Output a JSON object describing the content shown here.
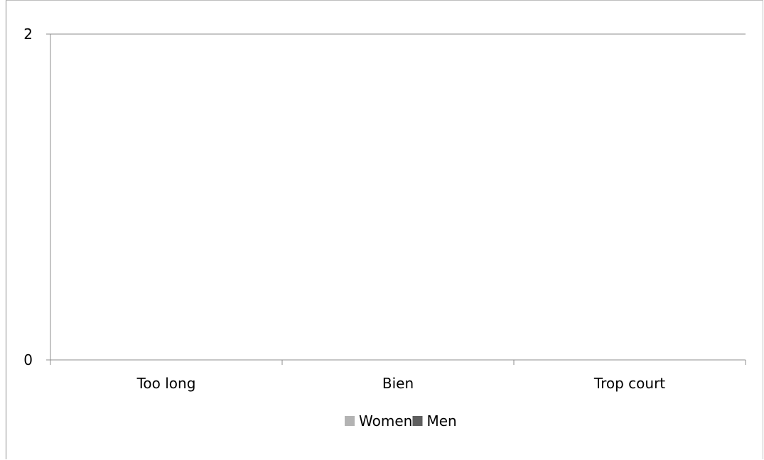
{
  "chart_data": {
    "type": "bar",
    "categories": [
      "Too long",
      "Bien",
      "Trop court"
    ],
    "series": [
      {
        "name": "Women",
        "values": [
          0,
          0,
          0
        ]
      },
      {
        "name": "Men",
        "values": [
          0,
          0,
          0
        ]
      }
    ],
    "ylim": [
      0,
      2
    ],
    "yticks": [
      0,
      2
    ],
    "grid": true,
    "legend_position": "bottom",
    "colors": {
      "Women": "#b3b3b3",
      "Men": "#5f5f5f",
      "gridline": "#8c8c8c",
      "axis": "#8c8c8c"
    }
  }
}
